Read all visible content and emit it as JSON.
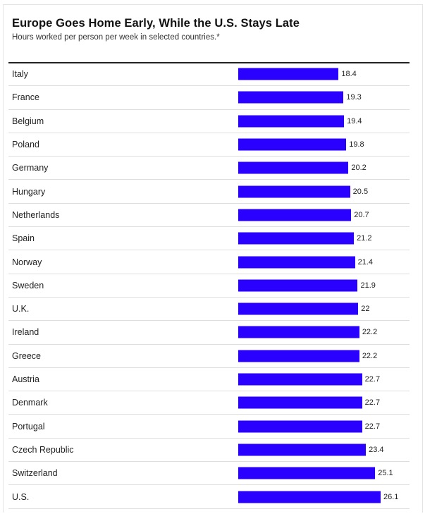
{
  "chart_data": {
    "type": "bar",
    "orientation": "horizontal",
    "title": "Europe Goes Home Early, While the U.S. Stays Late",
    "subtitle": "Hours worked per person per week in selected countries.*",
    "xlabel": "",
    "ylabel": "",
    "categories": [
      "Italy",
      "France",
      "Belgium",
      "Poland",
      "Germany",
      "Hungary",
      "Netherlands",
      "Spain",
      "Norway",
      "Sweden",
      "U.K.",
      "Ireland",
      "Greece",
      "Austria",
      "Denmark",
      "Portugal",
      "Czech Republic",
      "Switzerland",
      "U.S."
    ],
    "values": [
      18.4,
      19.3,
      19.4,
      19.8,
      20.2,
      20.5,
      20.7,
      21.2,
      21.4,
      21.9,
      22,
      22.2,
      22.2,
      22.7,
      22.7,
      22.7,
      23.4,
      25.1,
      26.1
    ],
    "value_labels": [
      "18.4",
      "19.3",
      "19.4",
      "19.8",
      "20.2",
      "20.5",
      "20.7",
      "21.2",
      "21.4",
      "21.9",
      "22",
      "22.2",
      "22.2",
      "22.7",
      "22.7",
      "22.7",
      "23.4",
      "25.1",
      "26.1"
    ],
    "xlim": [
      0,
      26.1
    ],
    "grid": false,
    "bar_color": "#2a00ff"
  }
}
